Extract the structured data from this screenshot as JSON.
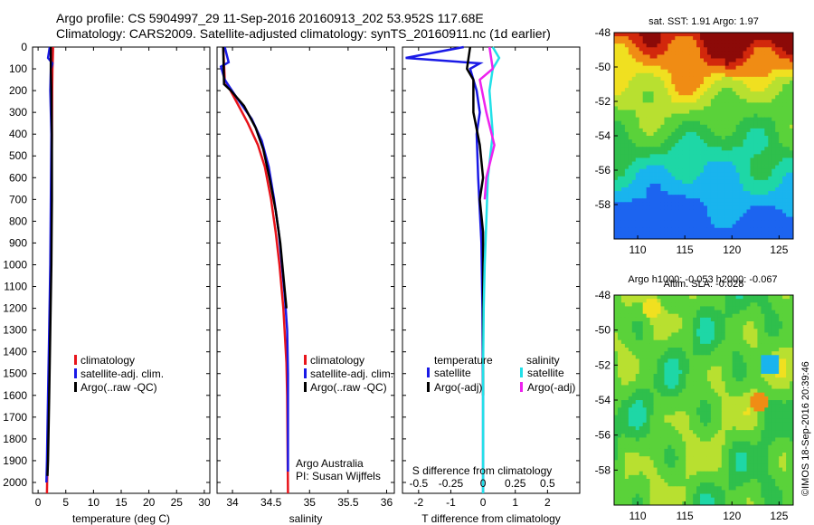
{
  "header": {
    "line1": "Argo profile: CS 5904997_29 11-Sep-2016 20160913_202 53.952S 117.68E",
    "line2": "Climatology: CARS2009. Satellite-adjusted climatology: synTS_20160911.nc (1d earlier)"
  },
  "colors": {
    "climatology": "#e8141b",
    "satellite": "#1a1ae6",
    "argo": "#000000",
    "sat_salinity": "#22e0e8",
    "argo_salinity": "#ee22ee"
  },
  "chart_data": [
    {
      "type": "line",
      "xlabel": "temperature (deg C)",
      "ylim": [
        2050,
        0
      ],
      "xlim": [
        -1,
        31
      ],
      "xticks": [
        0,
        5,
        10,
        15,
        20,
        25,
        30
      ],
      "yticks": [
        0,
        100,
        200,
        300,
        400,
        500,
        600,
        700,
        800,
        900,
        1000,
        1100,
        1200,
        1300,
        1400,
        1500,
        1600,
        1700,
        1800,
        1900,
        2000
      ],
      "legend": [
        "climatology",
        "satellite-adj. clim.",
        "Argo(..raw -QC)"
      ],
      "series": [
        {
          "name": "climatology",
          "color": "#e8141b",
          "points": [
            [
              2.7,
              0
            ],
            [
              2.65,
              50
            ],
            [
              2.6,
              100
            ],
            [
              2.55,
              200
            ],
            [
              2.5,
              400
            ],
            [
              2.4,
              700
            ],
            [
              2.3,
              1000
            ],
            [
              2.1,
              1300
            ],
            [
              1.9,
              1600
            ],
            [
              1.7,
              1900
            ],
            [
              1.6,
              2050
            ]
          ]
        },
        {
          "name": "satellite-adj. clim.",
          "color": "#1a1ae6",
          "points": [
            [
              2.1,
              0
            ],
            [
              1.8,
              50
            ],
            [
              2.6,
              75
            ],
            [
              2.3,
              100
            ],
            [
              2.2,
              200
            ],
            [
              2.4,
              400
            ],
            [
              2.3,
              700
            ],
            [
              2.2,
              1000
            ],
            [
              2.0,
              1300
            ],
            [
              1.8,
              1600
            ],
            [
              1.6,
              1900
            ],
            [
              1.5,
              2000
            ]
          ]
        },
        {
          "name": "Argo(..raw -QC)",
          "color": "#000000",
          "points": [
            [
              2.3,
              0
            ],
            [
              2.3,
              100
            ],
            [
              2.4,
              200
            ],
            [
              2.5,
              400
            ],
            [
              2.5,
              700
            ],
            [
              2.4,
              1000
            ],
            [
              2.2,
              1300
            ],
            [
              2.0,
              1600
            ],
            [
              1.8,
              1900
            ],
            [
              1.7,
              1970
            ]
          ]
        }
      ]
    },
    {
      "type": "line",
      "xlabel": "salinity",
      "ylim": [
        2050,
        0
      ],
      "xlim": [
        33.8,
        36.1
      ],
      "xticks": [
        34,
        34.5,
        35,
        35.5,
        36
      ],
      "xticklabels": [
        "34",
        "34.5",
        "35",
        "35.5",
        "36"
      ],
      "legend": [
        "climatology",
        "satellite-adj. clim.",
        "Argo(..raw -QC)"
      ],
      "annotation": [
        "Argo Australia",
        "PI: Susan Wijffels"
      ],
      "series": [
        {
          "name": "climatology",
          "color": "#e8141b",
          "points": [
            [
              33.88,
              0
            ],
            [
              33.9,
              150
            ],
            [
              34.05,
              250
            ],
            [
              34.2,
              350
            ],
            [
              34.33,
              450
            ],
            [
              34.42,
              550
            ],
            [
              34.5,
              700
            ],
            [
              34.56,
              850
            ],
            [
              34.61,
              1000
            ],
            [
              34.66,
              1200
            ],
            [
              34.7,
              1450
            ],
            [
              34.71,
              1600
            ],
            [
              34.72,
              2050
            ]
          ]
        },
        {
          "name": "satellite-adj. clim.",
          "color": "#1a1ae6",
          "points": [
            [
              33.9,
              0
            ],
            [
              33.95,
              70
            ],
            [
              33.85,
              90
            ],
            [
              33.9,
              150
            ],
            [
              34.05,
              230
            ],
            [
              34.25,
              330
            ],
            [
              34.38,
              430
            ],
            [
              34.47,
              550
            ],
            [
              34.54,
              700
            ],
            [
              34.6,
              850
            ],
            [
              34.64,
              1000
            ],
            [
              34.68,
              1150
            ],
            [
              34.71,
              1300
            ],
            [
              34.72,
              1500
            ],
            [
              34.72,
              1950
            ]
          ]
        },
        {
          "name": "Argo(..raw -QC)",
          "color": "#000000",
          "points": [
            [
              33.88,
              0
            ],
            [
              33.89,
              170
            ],
            [
              33.98,
              200
            ],
            [
              34.15,
              270
            ],
            [
              34.3,
              370
            ],
            [
              34.4,
              470
            ],
            [
              34.48,
              600
            ],
            [
              34.56,
              750
            ],
            [
              34.62,
              900
            ],
            [
              34.66,
              1050
            ],
            [
              34.7,
              1200
            ]
          ]
        }
      ]
    },
    {
      "type": "line",
      "xlabel": "T difference from climatology",
      "top_label": "S difference from climatology",
      "ylim": [
        2050,
        0
      ],
      "xlim": [
        -2.5,
        3
      ],
      "xticks": [
        -2,
        -1,
        0,
        1,
        2
      ],
      "xticklabels": [
        "-2",
        "-1",
        "0",
        "1",
        "2"
      ],
      "top_ticks": [
        -0.5,
        -0.25,
        0,
        0.25,
        0.5
      ],
      "top_ticklabels": [
        "-0.5",
        "-0.25",
        "0",
        "0.25",
        "0.5"
      ],
      "legend_titles": [
        "temperature",
        "salinity"
      ],
      "legend": [
        "satellite",
        "Argo(-adj)",
        "satellite",
        "Argo(-adj)"
      ],
      "series": [
        {
          "name": "satellite",
          "color": "#1a1ae6",
          "points": [
            [
              -0.6,
              0
            ],
            [
              -2.4,
              50
            ],
            [
              -0.1,
              75
            ],
            [
              -0.4,
              100
            ],
            [
              -0.2,
              200
            ],
            [
              -0.1,
              300
            ],
            [
              -0.2,
              400
            ],
            [
              -0.15,
              600
            ],
            [
              -0.05,
              900
            ],
            [
              -0.02,
              1200
            ],
            [
              0,
              1600
            ],
            [
              0,
              2050
            ]
          ]
        },
        {
          "name": "Argo(-adj)",
          "color": "#000000",
          "points": [
            [
              -0.4,
              0
            ],
            [
              -0.5,
              100
            ],
            [
              -0.3,
              150
            ],
            [
              -0.3,
              300
            ],
            [
              -0.1,
              450
            ],
            [
              0,
              600
            ],
            [
              -0.1,
              700
            ],
            [
              0,
              850
            ],
            [
              0,
              1000
            ],
            [
              0,
              1400
            ],
            [
              0,
              1600
            ]
          ]
        },
        {
          "name": "satellite",
          "color": "#22e0e8",
          "points": [
            [
              0.3,
              0
            ],
            [
              0.5,
              50
            ],
            [
              0.3,
              100
            ],
            [
              0.2,
              200
            ],
            [
              0.3,
              400
            ],
            [
              0.15,
              600
            ],
            [
              0.1,
              800
            ],
            [
              0.05,
              1000
            ],
            [
              0.02,
              1200
            ],
            [
              0,
              1500
            ],
            [
              0,
              2050
            ]
          ]
        },
        {
          "name": "Argo(-adj)",
          "color": "#ee22ee",
          "points": [
            [
              0.2,
              0
            ],
            [
              0.3,
              100
            ],
            [
              -0.1,
              150
            ],
            [
              0.1,
              300
            ],
            [
              0.35,
              450
            ],
            [
              0.1,
              600
            ],
            [
              0.05,
              700
            ]
          ]
        }
      ]
    },
    {
      "type": "heatmap",
      "title": "sat. SST: 1.91 Argo: 1.97",
      "xticks": [
        110,
        115,
        120,
        125
      ],
      "yticks": [
        -48,
        -50,
        -52,
        -54,
        -56,
        -58
      ]
    },
    {
      "type": "heatmap",
      "title": "Altim. SLA: -0.028",
      "subtitle": "Argo h1000: -0.053 h2000: -0.067",
      "xticks": [
        110,
        115,
        120,
        125
      ],
      "yticks": [
        -48,
        -50,
        -52,
        -54,
        -56,
        -58
      ]
    }
  ],
  "side_label": "©IMOS 18-Sep-2016 20:39:46"
}
